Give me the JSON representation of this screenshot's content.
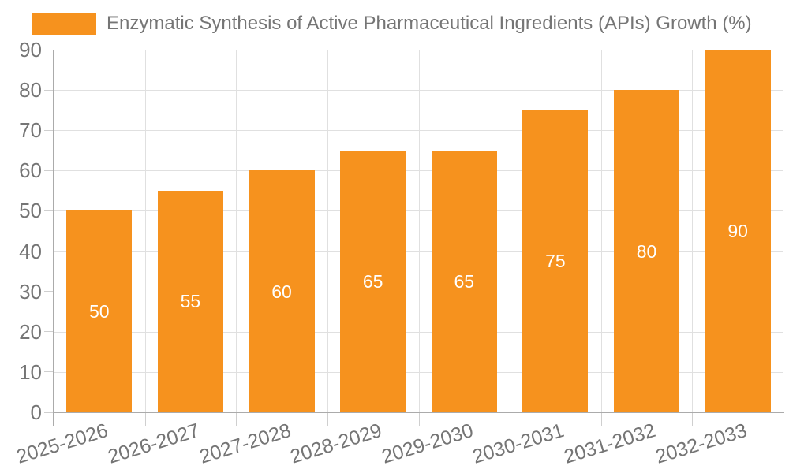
{
  "legend": {
    "label": "Enzymatic Synthesis of Active Pharmaceutical Ingredients (APIs) Growth (%)"
  },
  "chart_data": {
    "type": "bar",
    "title": "Enzymatic Synthesis of Active Pharmaceutical Ingredients (APIs) Growth (%)",
    "categories": [
      "2025-2026",
      "2026-2027",
      "2027-2028",
      "2028-2029",
      "2029-2030",
      "2030-2031",
      "2031-2032",
      "2032-2033"
    ],
    "series": [
      {
        "name": "Enzymatic Synthesis of Active Pharmaceutical Ingredients (APIs) Growth (%)",
        "values": [
          50,
          55,
          60,
          65,
          65,
          75,
          80,
          90
        ]
      }
    ],
    "values": [
      50,
      55,
      60,
      65,
      65,
      75,
      80,
      90
    ],
    "bar_labels": [
      "50",
      "55",
      "60",
      "65",
      "65",
      "75",
      "80",
      "90"
    ],
    "xlabel": "",
    "ylabel": "",
    "ylim": [
      0,
      90
    ],
    "ytick_step": 10,
    "yticks": [
      0,
      10,
      20,
      30,
      40,
      50,
      60,
      70,
      80,
      90
    ],
    "grid": true,
    "legend_position": "top-left",
    "colors": {
      "bar": "#F6921E",
      "bar_label": "#FFFFFF",
      "axis_text": "#757575",
      "gridline": "#E0E0E0",
      "axis_line": "#ABABAB",
      "tick": "#CFCFCF",
      "background": "#FFFFFF"
    }
  }
}
